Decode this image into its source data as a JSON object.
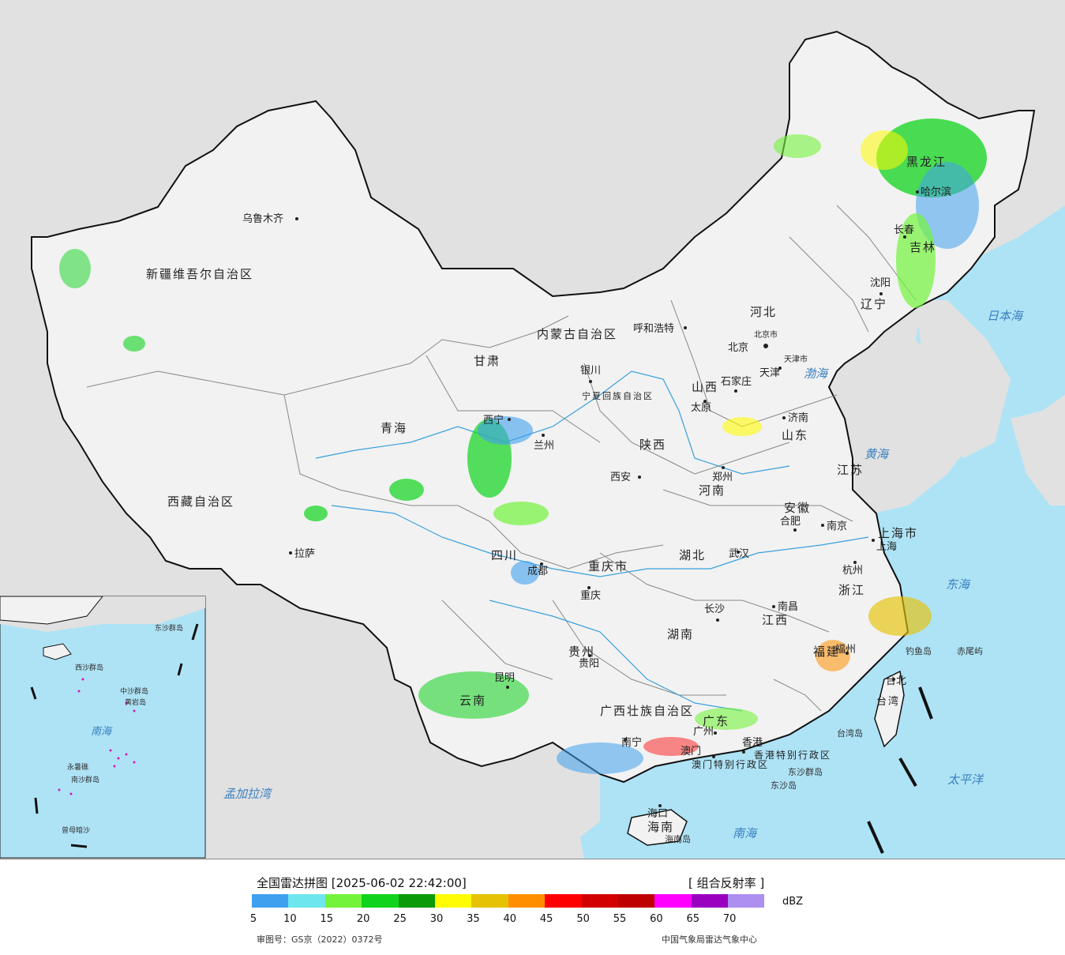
{
  "map": {
    "colors": {
      "ocean": "#aee3f6",
      "land_china": "#f2f2f2",
      "land_other": "#e1e1e1",
      "border": "#111111",
      "province_line": "#888888",
      "river": "#3aa0dd"
    },
    "provinces": [
      {
        "id": "xinjiang",
        "label": "新疆维吾尔自治区"
      },
      {
        "id": "xizang",
        "label": "西藏自治区"
      },
      {
        "id": "qinghai",
        "label": "青海"
      },
      {
        "id": "gansu",
        "label": "甘肃"
      },
      {
        "id": "neimenggu",
        "label": "内蒙古自治区"
      },
      {
        "id": "heilongjiang",
        "label": "黑龙江"
      },
      {
        "id": "jilin",
        "label": "吉林"
      },
      {
        "id": "liaoning",
        "label": "辽宁"
      },
      {
        "id": "hebei",
        "label": "河北"
      },
      {
        "id": "shanxi",
        "label": "山西"
      },
      {
        "id": "shaanxi",
        "label": "陕西"
      },
      {
        "id": "ningxia",
        "label": "宁夏回族自治区"
      },
      {
        "id": "shandong",
        "label": "山东"
      },
      {
        "id": "henan",
        "label": "河南"
      },
      {
        "id": "jiangsu",
        "label": "江苏"
      },
      {
        "id": "anhui",
        "label": "安徽"
      },
      {
        "id": "shanghai",
        "label": "上海市"
      },
      {
        "id": "zhejiang",
        "label": "浙江"
      },
      {
        "id": "sichuan",
        "label": "四川"
      },
      {
        "id": "chongqing",
        "label": "重庆市"
      },
      {
        "id": "hubei",
        "label": "湖北"
      },
      {
        "id": "hunan",
        "label": "湖南"
      },
      {
        "id": "jiangxi",
        "label": "江西"
      },
      {
        "id": "fujian",
        "label": "福建"
      },
      {
        "id": "guizhou",
        "label": "贵州"
      },
      {
        "id": "yunnan",
        "label": "云南"
      },
      {
        "id": "guangxi",
        "label": "广西壮族自治区"
      },
      {
        "id": "guangdong",
        "label": "广东"
      },
      {
        "id": "hainan",
        "label": "海南"
      },
      {
        "id": "taiwan",
        "label": "台湾"
      },
      {
        "id": "xianggang",
        "label": "香港特别行政区"
      },
      {
        "id": "aomen",
        "label": "澳门特别行政区"
      }
    ],
    "cities": [
      {
        "id": "urumqi",
        "label": "乌鲁木齐"
      },
      {
        "id": "lhasa",
        "label": "拉萨"
      },
      {
        "id": "xining",
        "label": "西宁"
      },
      {
        "id": "lanzhou",
        "label": "兰州"
      },
      {
        "id": "yinchuan",
        "label": "银川"
      },
      {
        "id": "hohhot",
        "label": "呼和浩特"
      },
      {
        "id": "harbin",
        "label": "哈尔滨"
      },
      {
        "id": "changchun",
        "label": "长春"
      },
      {
        "id": "shenyang",
        "label": "沈阳"
      },
      {
        "id": "beijing",
        "label": "北京"
      },
      {
        "id": "beijingshi",
        "label": "北京市"
      },
      {
        "id": "tianjin",
        "label": "天津"
      },
      {
        "id": "tianjinshi",
        "label": "天津市"
      },
      {
        "id": "shijiazhuang",
        "label": "石家庄"
      },
      {
        "id": "taiyuan",
        "label": "太原"
      },
      {
        "id": "jinan",
        "label": "济南"
      },
      {
        "id": "zhengzhou",
        "label": "郑州"
      },
      {
        "id": "xian",
        "label": "西安"
      },
      {
        "id": "nanjing",
        "label": "南京"
      },
      {
        "id": "hefei",
        "label": "合肥"
      },
      {
        "id": "shanghaic",
        "label": "上海"
      },
      {
        "id": "hangzhou",
        "label": "杭州"
      },
      {
        "id": "wuhan",
        "label": "武汉"
      },
      {
        "id": "chengdu",
        "label": "成都"
      },
      {
        "id": "chongqingc",
        "label": "重庆"
      },
      {
        "id": "changsha",
        "label": "长沙"
      },
      {
        "id": "nanchang",
        "label": "南昌"
      },
      {
        "id": "fuzhou",
        "label": "福州"
      },
      {
        "id": "guiyang",
        "label": "贵阳"
      },
      {
        "id": "kunming",
        "label": "昆明"
      },
      {
        "id": "nanning",
        "label": "南宁"
      },
      {
        "id": "guangzhou",
        "label": "广州"
      },
      {
        "id": "xianggangc",
        "label": "香港"
      },
      {
        "id": "aomenc",
        "label": "澳门"
      },
      {
        "id": "haikou",
        "label": "海口"
      },
      {
        "id": "taibei",
        "label": "台北"
      }
    ],
    "seas": [
      {
        "id": "ribenhai",
        "label": "日本海"
      },
      {
        "id": "bohai",
        "label": "渤海"
      },
      {
        "id": "huanghai",
        "label": "黄海"
      },
      {
        "id": "donghai",
        "label": "东海"
      },
      {
        "id": "taipingyang",
        "label": "太平洋"
      },
      {
        "id": "nanhai",
        "label": "南海"
      },
      {
        "id": "mengjialawan",
        "label": "孟加拉湾"
      },
      {
        "id": "nanhai_inset",
        "label": "南海"
      }
    ],
    "islands": [
      {
        "id": "diaoyudao",
        "label": "钓鱼岛"
      },
      {
        "id": "chiweiyu",
        "label": "赤尾屿"
      },
      {
        "id": "taiwandao",
        "label": "台湾岛"
      },
      {
        "id": "dongshaqundao",
        "label": "东沙群岛"
      },
      {
        "id": "dongshadao",
        "label": "东沙岛"
      },
      {
        "id": "hainandao",
        "label": "海南岛"
      }
    ],
    "inset_labels": [
      {
        "id": "zhongshaqundao",
        "label": "中沙群岛"
      },
      {
        "id": "huangyandao",
        "label": "黄岩岛"
      },
      {
        "id": "nanshaqundao",
        "label": "南沙群岛"
      },
      {
        "id": "zengmuansha",
        "label": "曾母暗沙"
      },
      {
        "id": "xishaqundao",
        "label": "西沙群岛"
      },
      {
        "id": "yongshuqiao",
        "label": "永暑礁"
      },
      {
        "id": "dongshaqundao_i",
        "label": "东沙群岛"
      }
    ]
  },
  "legend": {
    "title": "全国雷达拼图 [2025-06-02 22:42:00]",
    "product": "[ 组合反射率 ]",
    "unit": "dBZ",
    "scale_colors": [
      "#3fa0ef",
      "#6ee6ee",
      "#74f33c",
      "#10d41c",
      "#0a9a0a",
      "#fffc03",
      "#e6c205",
      "#ff8f00",
      "#ff0000",
      "#d20000",
      "#be0000",
      "#ff00ff",
      "#9a00bf",
      "#ac8ff0"
    ],
    "ticks": [
      "5",
      "10",
      "15",
      "20",
      "25",
      "30",
      "35",
      "40",
      "45",
      "50",
      "55",
      "60",
      "65",
      "70"
    ],
    "approval": "审图号：GS京（2022）0372号",
    "source": "中国气象局雷达气象中心"
  }
}
